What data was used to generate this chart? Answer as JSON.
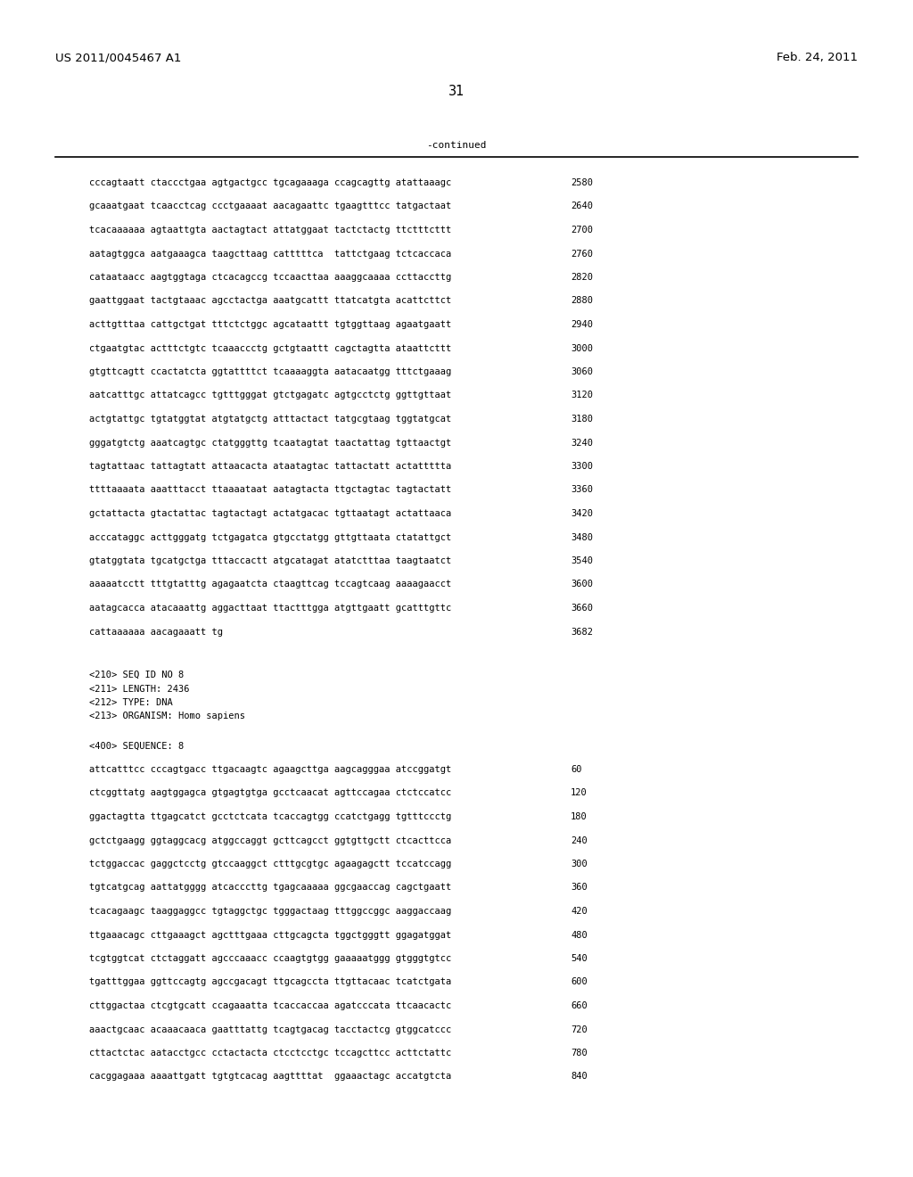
{
  "header_left": "US 2011/0045467 A1",
  "header_right": "Feb. 24, 2011",
  "page_number": "31",
  "continued_label": "-continued",
  "background_color": "#ffffff",
  "text_color": "#000000",
  "font_size_header": 9.5,
  "font_size_page": 10.5,
  "font_size_mono": 7.5,
  "sequence_lines_top": [
    [
      "cccagtaatt ctaccctgaa agtgactgcc tgcagaaaga ccagcagttg atattaaagc",
      "2580"
    ],
    [
      "gcaaatgaat tcaacctcag ccctgaaaat aacagaattc tgaagtttcc tatgactaat",
      "2640"
    ],
    [
      "tcacaaaaaa agtaattgta aactagtact attatggaat tactctactg ttctttcttt",
      "2700"
    ],
    [
      "aatagtggca aatgaaagca taagcttaag catttttca  tattctgaag tctcaccaca",
      "2760"
    ],
    [
      "cataataacc aagtggtaga ctcacagccg tccaacttaa aaaggcaaaa ccttaccttg",
      "2820"
    ],
    [
      "gaattggaat tactgtaaac agcctactga aaatgcattt ttatcatgta acattcttct",
      "2880"
    ],
    [
      "acttgtttaa cattgctgat tttctctggc agcataattt tgtggttaag agaatgaatt",
      "2940"
    ],
    [
      "ctgaatgtac actttctgtc tcaaaccctg gctgtaattt cagctagtta ataattcttt",
      "3000"
    ],
    [
      "gtgttcagtt ccactatcta ggtattttct tcaaaaggta aatacaatgg tttctgaaag",
      "3060"
    ],
    [
      "aatcatttgc attatcagcc tgtttgggat gtctgagatc agtgcctctg ggttgttaat",
      "3120"
    ],
    [
      "actgtattgc tgtatggtat atgtatgctg atttactact tatgcgtaag tggtatgcat",
      "3180"
    ],
    [
      "gggatgtctg aaatcagtgc ctatgggttg tcaatagtat taactattag tgttaactgt",
      "3240"
    ],
    [
      "tagtattaac tattagtatt attaacacta ataatagtac tattactatt actattttta",
      "3300"
    ],
    [
      "ttttaaaata aaatttacct ttaaaataat aatagtacta ttgctagtac tagtactatt",
      "3360"
    ],
    [
      "gctattacta gtactattac tagtactagt actatgacac tgttaatagt actattaaca",
      "3420"
    ],
    [
      "acccataggc acttgggatg tctgagatca gtgcctatgg gttgttaata ctatattgct",
      "3480"
    ],
    [
      "gtatggtata tgcatgctga tttaccactt atgcatagat atatctttaa taagtaatct",
      "3540"
    ],
    [
      "aaaaatcctt tttgtatttg agagaatcta ctaagttcag tccagtcaag aaaagaacct",
      "3600"
    ],
    [
      "aatagcacca atacaaattg aggacttaat ttactttgga atgttgaatt gcatttgttc",
      "3660"
    ],
    [
      "cattaaaaaa aacagaaatt tg",
      "3682"
    ]
  ],
  "seq_info_lines": [
    "<210> SEQ ID NO 8",
    "<211> LENGTH: 2436",
    "<212> TYPE: DNA",
    "<213> ORGANISM: Homo sapiens"
  ],
  "seq400_label": "<400> SEQUENCE: 8",
  "sequence_lines_bottom": [
    [
      "attcatttcc cccagtgacc ttgacaagtc agaagcttga aagcagggaa atccggatgt",
      "60"
    ],
    [
      "ctcggttatg aagtggagca gtgagtgtga gcctcaacat agttccagaa ctctccatcc",
      "120"
    ],
    [
      "ggactagtta ttgagcatct gcctctcata tcaccagtgg ccatctgagg tgtttccctg",
      "180"
    ],
    [
      "gctctgaagg ggtaggcacg atggccaggt gcttcagcct ggtgttgctt ctcacttcca",
      "240"
    ],
    [
      "tctggaccac gaggctcctg gtccaaggct ctttgcgtgc agaagagctt tccatccagg",
      "300"
    ],
    [
      "tgtcatgcag aattatgggg atcacccttg tgagcaaaaa ggcgaaccag cagctgaatt",
      "360"
    ],
    [
      "tcacagaagc taaggaggcc tgtaggctgc tgggactaag tttggccggc aaggaccaag",
      "420"
    ],
    [
      "ttgaaacagc cttgaaagct agctttgaaa cttgcagcta tggctgggtt ggagatggat",
      "480"
    ],
    [
      "tcgtggtcat ctctaggatt agcccaaacc ccaagtgtgg gaaaaatggg gtgggtgtcc",
      "540"
    ],
    [
      "tgatttggaa ggttccagtg agccgacagt ttgcagccta ttgttacaac tcatctgata",
      "600"
    ],
    [
      "cttggactaa ctcgtgcatt ccagaaatta tcaccaccaa agatcccata ttcaacactc",
      "660"
    ],
    [
      "aaactgcaac acaaacaaca gaatttattg tcagtgacag tacctactcg gtggcatccc",
      "720"
    ],
    [
      "cttactctac aatacctgcc cctactacta ctcctcctgc tccagcttcc acttctattc",
      "780"
    ],
    [
      "cacggagaaa aaaattgatt tgtgtcacag aagttttat  ggaaactagc accatgtcta",
      "840"
    ]
  ]
}
